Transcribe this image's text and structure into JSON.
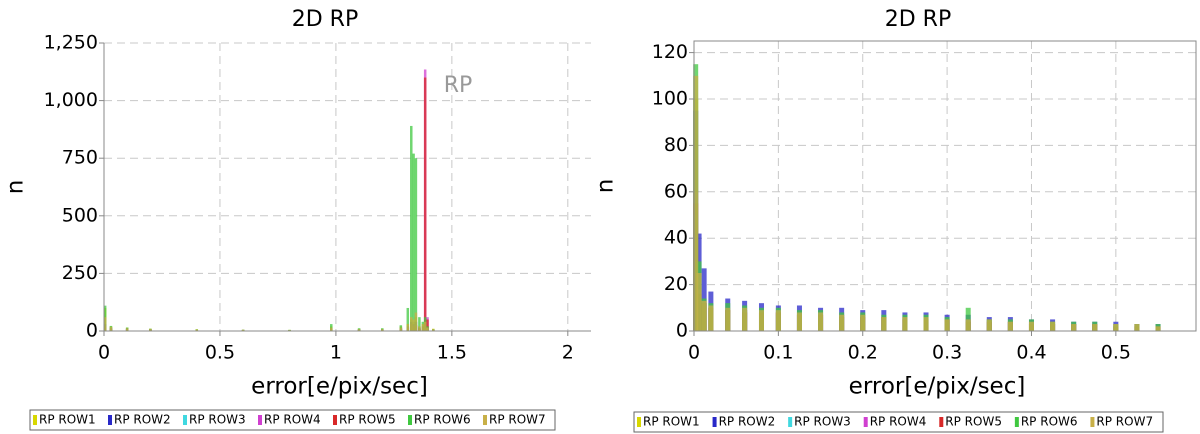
{
  "chart_data": [
    {
      "type": "bar",
      "title": "2D RP",
      "x_label": "error[e/pix/sec]",
      "y_label": "n",
      "annotation": "RP",
      "x": [
        0.005,
        0.03,
        0.1,
        0.2,
        0.4,
        0.6,
        0.8,
        0.98,
        1.1,
        1.2,
        1.28,
        1.31,
        1.325,
        1.335,
        1.345,
        1.36,
        1.375,
        1.385,
        1.395,
        1.42
      ],
      "series": [
        {
          "name": "RP ROW1",
          "color": "#d8d800",
          "values": [
            100,
            20,
            15,
            10,
            8,
            6,
            5,
            20,
            10,
            10,
            20,
            30,
            50,
            40,
            60,
            20,
            30,
            40,
            20,
            10
          ]
        },
        {
          "name": "RP ROW2",
          "color": "#2828c8",
          "values": [
            30,
            15,
            12,
            8,
            6,
            5,
            4,
            15,
            8,
            8,
            15,
            20,
            40,
            30,
            40,
            15,
            20,
            30,
            15,
            5
          ]
        },
        {
          "name": "RP ROW3",
          "color": "#40d8e0",
          "values": [
            20,
            10,
            8,
            6,
            4,
            3,
            3,
            10,
            5,
            5,
            10,
            15,
            30,
            20,
            25,
            10,
            15,
            20,
            10,
            5
          ]
        },
        {
          "name": "RP ROW4",
          "color": "#d040d0",
          "values": [
            20,
            10,
            8,
            6,
            4,
            3,
            3,
            10,
            5,
            5,
            10,
            15,
            30,
            20,
            25,
            10,
            20,
            1135,
            60,
            5
          ]
        },
        {
          "name": "RP ROW5",
          "color": "#d82828",
          "values": [
            20,
            10,
            8,
            6,
            4,
            3,
            3,
            10,
            5,
            5,
            10,
            15,
            30,
            20,
            25,
            10,
            20,
            1100,
            50,
            5
          ]
        },
        {
          "name": "RP ROW6",
          "color": "#40c840",
          "values": [
            110,
            22,
            15,
            10,
            7,
            5,
            5,
            30,
            12,
            12,
            25,
            100,
            890,
            770,
            750,
            60,
            40,
            60,
            20,
            8
          ]
        },
        {
          "name": "RP ROW7",
          "color": "#c8b048",
          "values": [
            60,
            18,
            12,
            9,
            6,
            5,
            4,
            15,
            8,
            8,
            15,
            30,
            60,
            50,
            80,
            20,
            30,
            40,
            15,
            8
          ]
        }
      ],
      "xlim": [
        0,
        2.1
      ],
      "ylim": [
        0,
        1250
      ],
      "xticks": [
        0,
        0.5,
        1,
        1.5,
        2
      ],
      "yticks": [
        0,
        250,
        500,
        750,
        {
          "value": 1000,
          "label": "1,000"
        },
        {
          "value": 1250,
          "label": "1,250"
        }
      ],
      "grid": true,
      "legend": "bottom"
    },
    {
      "type": "bar",
      "title": "2D RP",
      "x_label": "error[e/pix/sec]",
      "y_label": "n",
      "x": [
        0.002,
        0.006,
        0.012,
        0.02,
        0.04,
        0.06,
        0.08,
        0.1,
        0.125,
        0.15,
        0.175,
        0.2,
        0.225,
        0.25,
        0.275,
        0.3,
        0.325,
        0.35,
        0.375,
        0.4,
        0.425,
        0.45,
        0.475,
        0.5,
        0.525,
        0.55
      ],
      "series": [
        {
          "name": "RP ROW1",
          "color": "#d8d800",
          "values": [
            100,
            20,
            12,
            10,
            9,
            9,
            8,
            8,
            8,
            7,
            7,
            7,
            6,
            6,
            6,
            5,
            5,
            5,
            4,
            4,
            4,
            3,
            3,
            3,
            3,
            2
          ]
        },
        {
          "name": "RP ROW2",
          "color": "#2828c8",
          "values": [
            95,
            42,
            27,
            17,
            14,
            13,
            12,
            11,
            11,
            10,
            10,
            9,
            9,
            8,
            8,
            7,
            7,
            6,
            6,
            5,
            5,
            4,
            4,
            4,
            3,
            3
          ]
        },
        {
          "name": "RP ROW3",
          "color": "#40d8e0",
          "values": [
            50,
            15,
            12,
            9,
            8,
            8,
            7,
            7,
            7,
            6,
            6,
            6,
            5,
            5,
            5,
            4,
            4,
            4,
            3,
            3,
            3,
            3,
            2,
            2,
            2,
            2
          ]
        },
        {
          "name": "RP ROW4",
          "color": "#d040d0",
          "values": [
            60,
            18,
            13,
            10,
            9,
            9,
            8,
            8,
            7,
            7,
            7,
            6,
            6,
            6,
            5,
            5,
            5,
            4,
            4,
            4,
            3,
            3,
            3,
            3,
            3,
            2
          ]
        },
        {
          "name": "RP ROW5",
          "color": "#d82828",
          "values": [
            55,
            16,
            12,
            10,
            9,
            8,
            8,
            8,
            7,
            7,
            6,
            6,
            6,
            5,
            5,
            5,
            4,
            4,
            4,
            3,
            3,
            3,
            3,
            2,
            2,
            2
          ]
        },
        {
          "name": "RP ROW6",
          "color": "#40c840",
          "values": [
            115,
            30,
            14,
            12,
            12,
            11,
            10,
            10,
            9,
            9,
            8,
            8,
            7,
            7,
            7,
            6,
            10,
            5,
            5,
            5,
            4,
            4,
            4,
            3,
            3,
            3
          ]
        },
        {
          "name": "RP ROW7",
          "color": "#c8b048",
          "values": [
            110,
            25,
            13,
            11,
            10,
            10,
            9,
            9,
            8,
            8,
            7,
            7,
            6,
            6,
            6,
            5,
            5,
            5,
            4,
            4,
            4,
            3,
            3,
            3,
            3,
            2
          ]
        }
      ],
      "xlim": [
        0,
        0.595
      ],
      "ylim": [
        0,
        125
      ],
      "xticks": [
        0,
        0.1,
        0.2,
        0.3,
        0.4,
        0.5
      ],
      "yticks": [
        0,
        20,
        40,
        60,
        80,
        100,
        120
      ],
      "grid": true,
      "legend": "bottom"
    }
  ]
}
